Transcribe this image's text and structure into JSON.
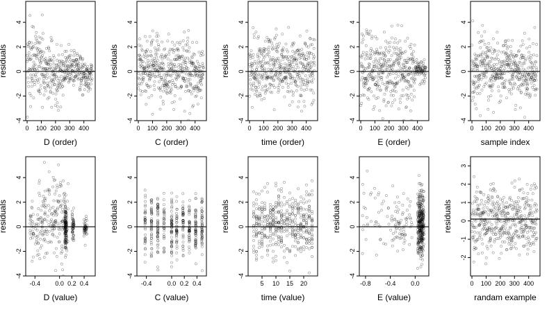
{
  "figure": {
    "rows": 2,
    "cols": 5,
    "point_style": "open circles, semi-transparent black",
    "reference_line": "horizontal line at residuals = 0"
  },
  "chart_data": [
    {
      "type": "scatter",
      "xlabel": "D (order)",
      "ylabel": "residuals",
      "xlim": [
        -10,
        480
      ],
      "ylim": [
        -4,
        5.7
      ],
      "xticks": [
        0,
        100,
        200,
        300,
        400
      ],
      "yticks": [
        -4,
        -2,
        0,
        2,
        4
      ],
      "hline": 0,
      "n_points": 460,
      "trend": "residual spread decreases over order; dense band near 0 around order 300-450"
    },
    {
      "type": "scatter",
      "xlabel": "C (order)",
      "ylabel": "residuals",
      "xlim": [
        -10,
        480
      ],
      "ylim": [
        -4,
        5.7
      ],
      "xticks": [
        0,
        100,
        200,
        300,
        400
      ],
      "yticks": [
        -4,
        -2,
        0,
        2,
        4
      ],
      "hline": 0,
      "n_points": 460,
      "trend": "roughly uniform scatter between -3 and 3 across order"
    },
    {
      "type": "scatter",
      "xlabel": "time (order)",
      "ylabel": "residuals",
      "xlim": [
        -10,
        480
      ],
      "ylim": [
        -4,
        5.7
      ],
      "xticks": [
        0,
        100,
        200,
        300,
        400
      ],
      "yticks": [
        -4,
        -2,
        0,
        2,
        4
      ],
      "hline": 0,
      "n_points": 460,
      "trend": "roughly uniform scatter between -3 and 4 across order"
    },
    {
      "type": "scatter",
      "xlabel": "E (order)",
      "ylabel": "residuals",
      "xlim": [
        -10,
        480
      ],
      "ylim": [
        -4,
        5.7
      ],
      "xticks": [
        0,
        100,
        200,
        300,
        400
      ],
      "yticks": [
        -4,
        -2,
        0,
        2,
        4
      ],
      "hline": 0,
      "n_points": 460,
      "trend": "wide spread at low order, tight cluster near 0 at order 380-450"
    },
    {
      "type": "scatter",
      "xlabel": "sample index",
      "ylabel": "residuals",
      "xlim": [
        -10,
        480
      ],
      "ylim": [
        -4,
        5.7
      ],
      "xticks": [
        0,
        100,
        200,
        300,
        400
      ],
      "yticks": [
        -4,
        -2,
        0,
        2,
        4
      ],
      "hline": 0,
      "n_points": 460,
      "trend": "scatter between -3 and 4, slightly denser near 0 toward high index"
    },
    {
      "type": "scatter",
      "xlabel": "D (value)",
      "ylabel": "residuals",
      "xlim": [
        -0.55,
        0.58
      ],
      "ylim": [
        -4,
        5.7
      ],
      "xticks": [
        -0.4,
        0,
        0.2,
        0.4
      ],
      "xtick_labels": [
        "-0.4",
        "0.0",
        "0.2",
        "0.4"
      ],
      "yticks": [
        -4,
        -2,
        0,
        2,
        4
      ],
      "hline": 0,
      "n_points": 460,
      "trend": "inverted-U: wide spread for D between -0.2 and 0.1, vertical columns at D ~ 0.1 and 0.2"
    },
    {
      "type": "scatter",
      "xlabel": "C (value)",
      "ylabel": "residuals",
      "xlim": [
        -0.55,
        0.55
      ],
      "ylim": [
        -4,
        5.7
      ],
      "xticks": [
        -0.4,
        0,
        0.2,
        0.4
      ],
      "xtick_labels": [
        "-0.4",
        "0.0",
        "0.2",
        "0.4"
      ],
      "yticks": [
        -4,
        -2,
        0,
        2,
        4
      ],
      "hline": 0,
      "n_points": 460,
      "trend": "values fall in discrete vertical columns; spread roughly -3 to 3"
    },
    {
      "type": "scatter",
      "xlabel": "time (value)",
      "ylabel": "residuals",
      "xlim": [
        0,
        25
      ],
      "ylim": [
        -4,
        5.7
      ],
      "xticks": [
        5,
        10,
        15,
        20
      ],
      "yticks": [
        -4,
        -2,
        0,
        2,
        4
      ],
      "hline": 0,
      "n_points": 460,
      "trend": "discrete integer time values forming vertical columns; spread -3 to 4"
    },
    {
      "type": "scatter",
      "xlabel": "E (value)",
      "ylabel": "residuals",
      "xlim": [
        -0.9,
        0.22
      ],
      "ylim": [
        -4,
        5.7
      ],
      "xticks": [
        -0.8,
        -0.4,
        0
      ],
      "xtick_labels": [
        "-0.8",
        "-0.4",
        "0.0"
      ],
      "yticks": [
        -4,
        -2,
        0,
        2,
        4
      ],
      "hline": 0,
      "n_points": 460,
      "trend": "most points in dense columns at E ~ 0.05 to 0.15; sparse points at negative E"
    },
    {
      "type": "scatter",
      "xlabel": "randam example",
      "ylabel": "residuals",
      "xlim": [
        -10,
        480
      ],
      "ylim": [
        -3,
        3.5
      ],
      "xticks": [
        0,
        100,
        200,
        300,
        400
      ],
      "yticks": [
        -2,
        -1,
        0,
        1,
        2,
        3
      ],
      "hline": 0.1,
      "n_points": 460,
      "trend": "random noise centered near 0, spread about -2.5 to 3.2"
    }
  ]
}
